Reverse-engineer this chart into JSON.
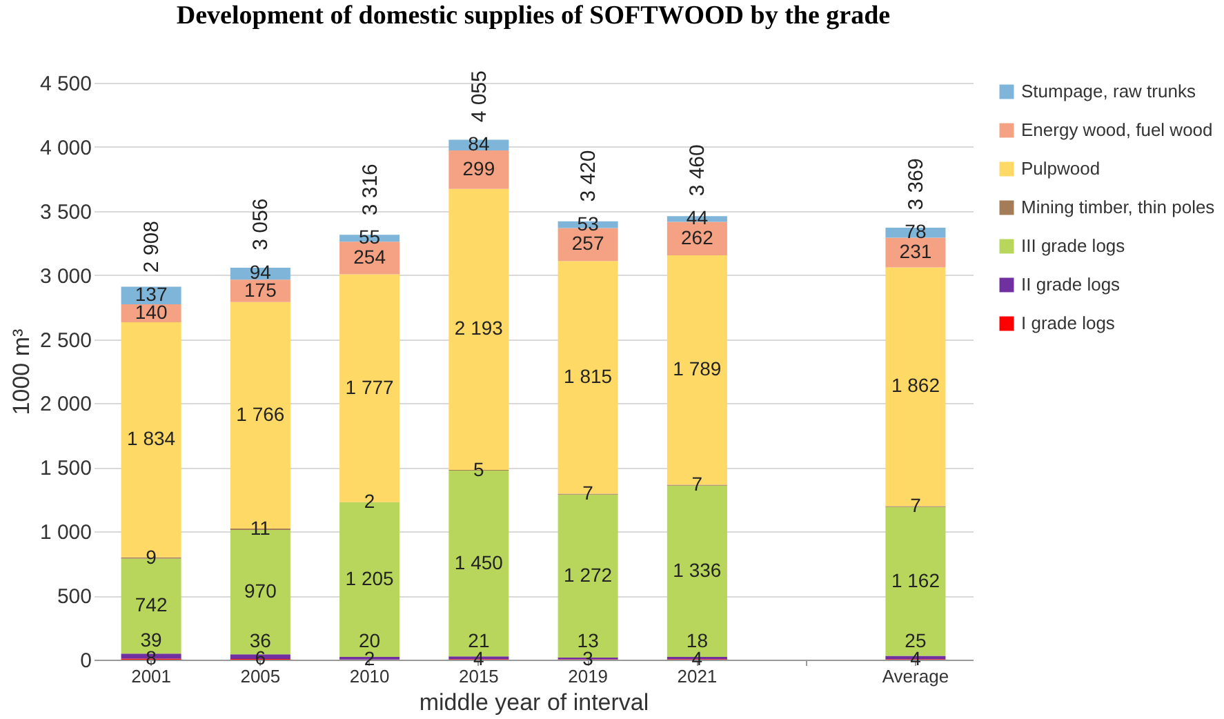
{
  "chart_data": {
    "type": "bar",
    "title": "Development of domestic supplies of SOFTWOOD by the grade",
    "xlabel": "middle year of interval",
    "ylabel": "1000 m³",
    "categories": [
      "2001",
      "2005",
      "2010",
      "2015",
      "2019",
      "2021",
      null,
      "Average"
    ],
    "stacked": true,
    "series": [
      {
        "name": "I grade logs",
        "color": "#ff0000",
        "values": [
          8,
          6,
          2,
          4,
          3,
          4,
          null,
          4
        ],
        "value_labels": [
          "8",
          "6",
          "2",
          "4",
          "3",
          "4",
          null,
          "4"
        ]
      },
      {
        "name": "II grade logs",
        "color": "#7030a0",
        "values": [
          39,
          36,
          20,
          21,
          13,
          18,
          null,
          25
        ],
        "value_labels": [
          "39",
          "36",
          "20",
          "21",
          "13",
          "18",
          null,
          "25"
        ]
      },
      {
        "name": "III grade logs",
        "color": "#b8d65c",
        "values": [
          742,
          970,
          1205,
          1450,
          1272,
          1336,
          null,
          1162
        ],
        "value_labels": [
          "742",
          "970",
          "1 205",
          "1 450",
          "1 272",
          "1 336",
          null,
          "1 162"
        ]
      },
      {
        "name": "Mining timber, thin poles",
        "color": "#a47c58",
        "values": [
          9,
          11,
          2,
          5,
          7,
          7,
          null,
          7
        ],
        "value_labels": [
          "9",
          "11",
          "2",
          "5",
          "7",
          "7",
          null,
          "7"
        ]
      },
      {
        "name": "Pulpwood",
        "color": "#ffd966",
        "values": [
          1834,
          1766,
          1777,
          2193,
          1815,
          1789,
          null,
          1862
        ],
        "value_labels": [
          "1 834",
          "1 766",
          "1 777",
          "2 193",
          "1 815",
          "1 789",
          null,
          "1 862"
        ]
      },
      {
        "name": "Energy wood, fuel wood",
        "color": "#f4a283",
        "values": [
          140,
          175,
          254,
          299,
          257,
          262,
          null,
          231
        ],
        "value_labels": [
          "140",
          "175",
          "254",
          "299",
          "257",
          "262",
          null,
          "231"
        ]
      },
      {
        "name": "Stumpage, raw trunks",
        "color": "#7fb5d8",
        "values": [
          137,
          94,
          55,
          84,
          53,
          44,
          null,
          78
        ],
        "value_labels": [
          "137",
          "94",
          "55",
          "84",
          "53",
          "44",
          null,
          "78"
        ]
      }
    ],
    "totals": [
      "2 908",
      "3 056",
      "3 316",
      "4 055",
      "3 420",
      "3 460",
      null,
      "3 369"
    ],
    "ylim": [
      0,
      4500
    ],
    "yticks": [
      0,
      500,
      {
        "value": 1000,
        "label": "1 000"
      },
      {
        "value": 1500,
        "label": "1 500"
      },
      {
        "value": 2000,
        "label": "2 000"
      },
      {
        "value": 2500,
        "label": "2 500"
      },
      {
        "value": 3000,
        "label": "3 000"
      },
      {
        "value": 3500,
        "label": "3 500"
      },
      {
        "value": 4000,
        "label": "4 000"
      },
      {
        "value": 4500,
        "label": "4 500"
      }
    ],
    "grid": "y",
    "legend": "right"
  }
}
